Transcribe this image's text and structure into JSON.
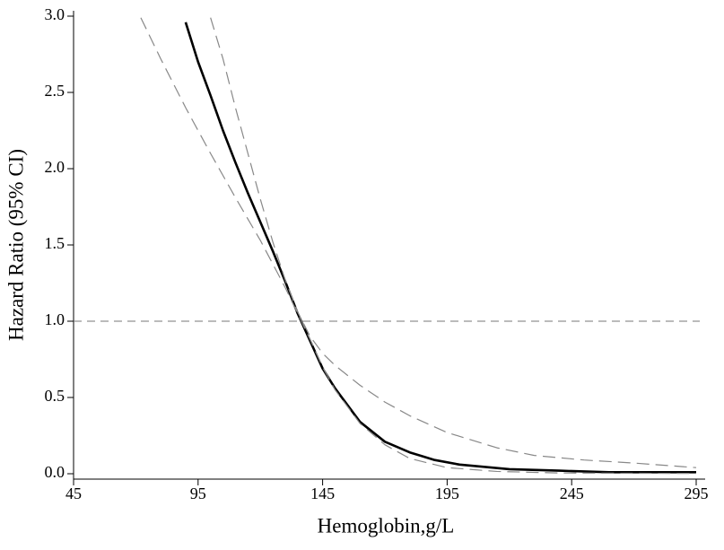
{
  "chart_data": {
    "type": "line",
    "xlabel": "Hemoglobin,g/L",
    "ylabel": "Hazard Ratio (95% CI)",
    "xlim": [
      45,
      295
    ],
    "xticks": [
      45,
      95,
      145,
      195,
      245,
      295
    ],
    "ylim": [
      0,
      3
    ],
    "yticks": [
      {
        "value": 0,
        "label": "0.0"
      },
      {
        "value": 0.5,
        "label": "0.5"
      },
      {
        "value": 1,
        "label": "1.0"
      },
      {
        "value": 1.5,
        "label": "1.5"
      },
      {
        "value": 2,
        "label": "2.0"
      },
      {
        "value": 2.5,
        "label": "2.5"
      },
      {
        "value": 3,
        "label": "3.0"
      }
    ],
    "reference_line": 1,
    "series": [
      {
        "color": "#000000",
        "style": "solid",
        "x": [
          90,
          95,
          100,
          105,
          110,
          115,
          120,
          125,
          130,
          135,
          140,
          145,
          150,
          160,
          170,
          180,
          190,
          200,
          220,
          240,
          260,
          280,
          295
        ],
        "values": [
          2.96,
          2.7,
          2.48,
          2.25,
          2.04,
          1.84,
          1.65,
          1.46,
          1.26,
          1.05,
          0.87,
          0.69,
          0.56,
          0.34,
          0.21,
          0.14,
          0.09,
          0.06,
          0.03,
          0.02,
          0.01,
          0.01,
          0.01
        ]
      },
      {
        "color": "#888888",
        "style": "dashed",
        "x": [
          100,
          105,
          110,
          115,
          120,
          125,
          130,
          135,
          140,
          145,
          150,
          160,
          170,
          180,
          195,
          215,
          230,
          250,
          270,
          295
        ],
        "values": [
          2.99,
          2.72,
          2.4,
          2.1,
          1.8,
          1.52,
          1.27,
          1.06,
          0.9,
          0.79,
          0.71,
          0.58,
          0.47,
          0.38,
          0.27,
          0.17,
          0.12,
          0.09,
          0.07,
          0.04
        ]
      },
      {
        "color": "#888888",
        "style": "dashed",
        "x": [
          72,
          80,
          90,
          100,
          110,
          120,
          130,
          135,
          140,
          145,
          150,
          160,
          170,
          180,
          195,
          215,
          240,
          270,
          295
        ],
        "values": [
          2.99,
          2.72,
          2.4,
          2.1,
          1.81,
          1.53,
          1.22,
          1.05,
          0.88,
          0.7,
          0.55,
          0.33,
          0.19,
          0.1,
          0.04,
          0.015,
          0.005,
          0.003,
          0.002
        ]
      }
    ]
  }
}
